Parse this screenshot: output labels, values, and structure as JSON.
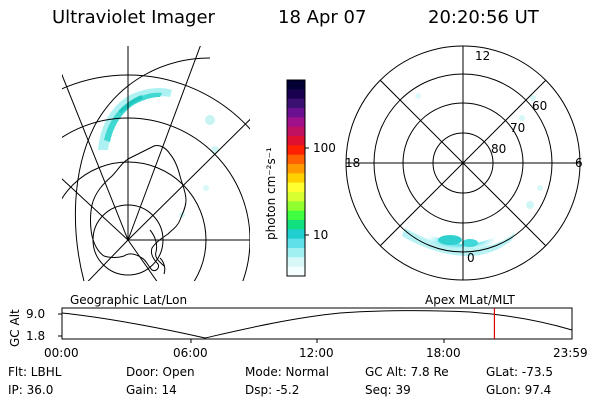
{
  "header": {
    "title": "Ultraviolet Imager",
    "date": "18 Apr 07",
    "time": "20:20:56 UT"
  },
  "colorbar": {
    "unit_label": "photon cm⁻²s⁻¹",
    "ticks": [
      "100",
      "10"
    ],
    "colors": [
      "#000033",
      "#1a0050",
      "#3a1070",
      "#6a1090",
      "#a0108a",
      "#c01060",
      "#e01030",
      "#ff2000",
      "#ff6000",
      "#ff9900",
      "#ffd000",
      "#ffff30",
      "#d8ff30",
      "#90ff30",
      "#40ff40",
      "#10e080",
      "#20d0d0",
      "#60e0e8",
      "#a0f0f0",
      "#d8f8f8",
      "#f4ffff"
    ]
  },
  "left_map": {
    "label": "Geographic Lat/Lon"
  },
  "right_map": {
    "label": "Apex  MLat/MLT",
    "mlt_labels": [
      "12",
      "18",
      "6",
      "0"
    ],
    "lat_labels": [
      "60",
      "70",
      "80"
    ]
  },
  "timeline": {
    "ylabel": "GC Alt",
    "y_ticks": [
      "9.0",
      "1.8"
    ],
    "x_ticks": [
      "00:00",
      "06:00",
      "12:00",
      "18:00",
      "23:59"
    ],
    "marker_color": "#dd0000",
    "current_time_fraction": 0.8479
  },
  "info": {
    "row1": [
      "Flt: LBHL",
      "Door: Open",
      "Mode: Normal",
      "GC Alt: 7.8 Re",
      "GLat: -73.5"
    ],
    "row2": [
      "IP: 36.0",
      "Gain: 14",
      "Dsp:   -5.2",
      "Seq: 39",
      "GLon:  97.4"
    ]
  }
}
